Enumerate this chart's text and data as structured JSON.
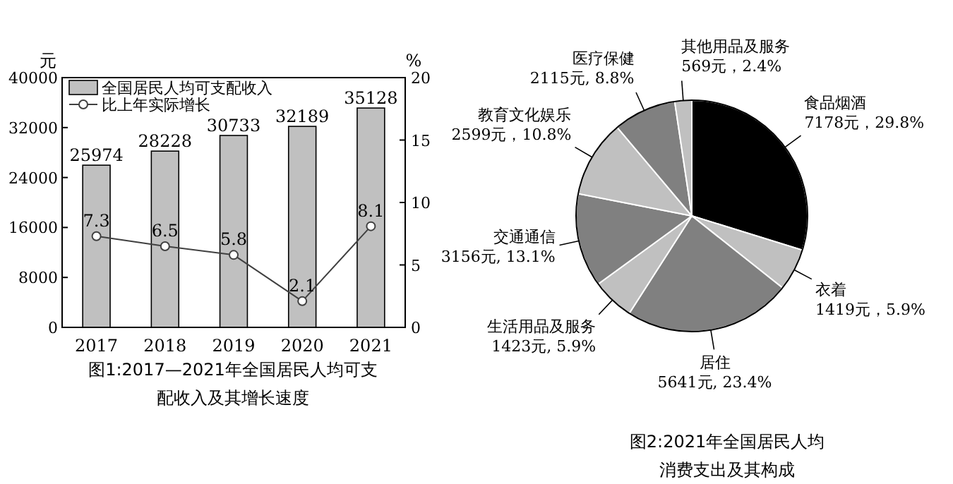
{
  "chart_data": [
    {
      "type": "bar",
      "title": "图1:2017—2021年全国居民人均可支配收入及其增长速度",
      "ylabel": "元",
      "y2label": "%",
      "categories": [
        "2017",
        "2018",
        "2019",
        "2020",
        "2021"
      ],
      "series": [
        {
          "name": "全国居民人均可支配收入",
          "type": "bar",
          "color": "#c0c0c0",
          "values": [
            25974,
            28228,
            30733,
            32189,
            35128
          ]
        },
        {
          "name": "比上年实际增长",
          "type": "line",
          "axis": "y2",
          "color": "#404040",
          "values": [
            7.3,
            6.5,
            5.8,
            2.1,
            8.1
          ]
        }
      ],
      "ylim": [
        0,
        40000
      ],
      "yticks": [
        0,
        8000,
        16000,
        24000,
        32000,
        40000
      ],
      "y2lim": [
        0,
        20
      ],
      "y2ticks": [
        0,
        5,
        10,
        15,
        20
      ],
      "data_labels": true,
      "legend": "top left",
      "marker": "circle",
      "grid": false
    },
    {
      "type": "pie",
      "title": "图2:2021年全国居民人均消费支出及其构成",
      "categories": [
        "食品烟酒",
        "衣着",
        "居住",
        "生活用品及服务",
        "交通通信",
        "教育文化娱乐",
        "医疗保健",
        "其他用品及服务"
      ],
      "values": [
        7178,
        1419,
        5641,
        1423,
        3156,
        2599,
        2115,
        569
      ],
      "colors": [
        "#000000",
        "#c0c0c0",
        "#808080",
        "#c0c0c0",
        "#808080",
        "#c0c0c0",
        "#808080",
        "#c0c0c0"
      ],
      "value_labels": [
        "7178元，29.8%",
        "1419元，5.9%",
        "5641元, 23.4%",
        "1423元, 5.9%",
        "3156元, 13.1%",
        "2599元，10.8%",
        "2115元, 8.8%",
        "569元，2.4%"
      ]
    }
  ]
}
